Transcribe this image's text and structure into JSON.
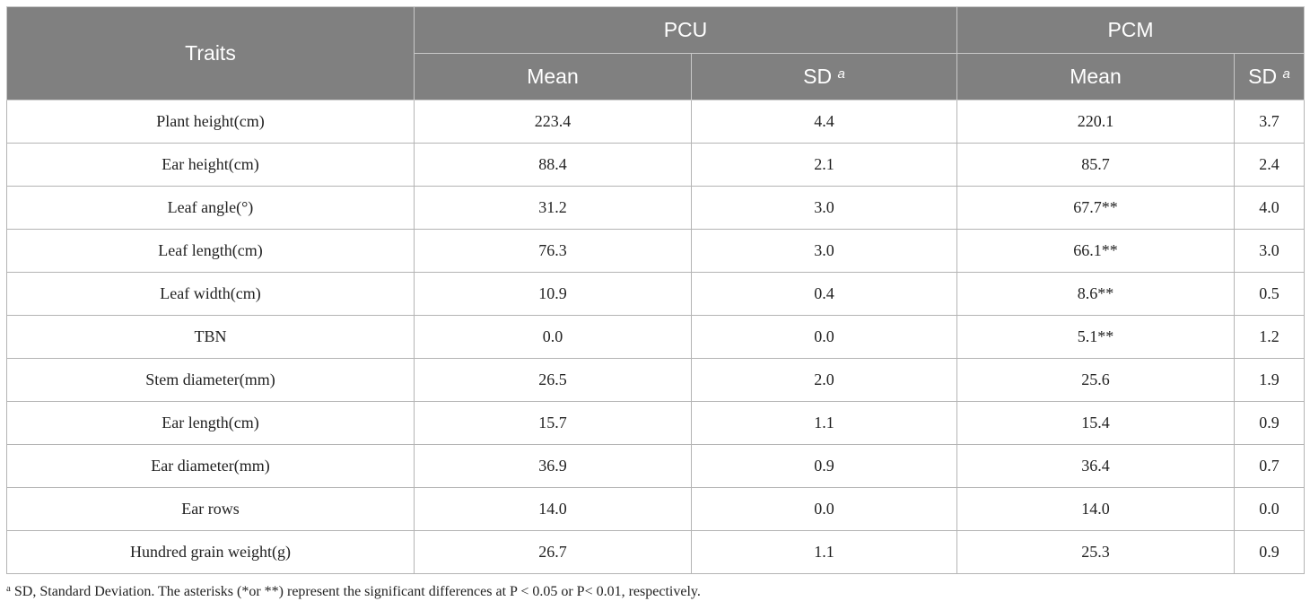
{
  "table": {
    "header": {
      "traits": "Traits",
      "groups": [
        "PCU",
        "PCM"
      ],
      "mean": "Mean",
      "sd": "SD",
      "sd_sup": "a"
    },
    "rows": [
      {
        "trait": "Plant height(cm)",
        "pcu_mean": "223.4",
        "pcu_sd": "4.4",
        "pcm_mean": "220.1",
        "pcm_sd": "3.7"
      },
      {
        "trait": "Ear height(cm)",
        "pcu_mean": "88.4",
        "pcu_sd": "2.1",
        "pcm_mean": "85.7",
        "pcm_sd": "2.4"
      },
      {
        "trait": "Leaf angle(°)",
        "pcu_mean": "31.2",
        "pcu_sd": "3.0",
        "pcm_mean": "67.7**",
        "pcm_sd": "4.0"
      },
      {
        "trait": "Leaf length(cm)",
        "pcu_mean": "76.3",
        "pcu_sd": "3.0",
        "pcm_mean": "66.1**",
        "pcm_sd": "3.0"
      },
      {
        "trait": "Leaf width(cm)",
        "pcu_mean": "10.9",
        "pcu_sd": "0.4",
        "pcm_mean": "8.6**",
        "pcm_sd": "0.5"
      },
      {
        "trait": "TBN",
        "pcu_mean": "0.0",
        "pcu_sd": "0.0",
        "pcm_mean": "5.1**",
        "pcm_sd": "1.2"
      },
      {
        "trait": "Stem diameter(mm)",
        "pcu_mean": "26.5",
        "pcu_sd": "2.0",
        "pcm_mean": "25.6",
        "pcm_sd": "1.9"
      },
      {
        "trait": "Ear length(cm)",
        "pcu_mean": "15.7",
        "pcu_sd": "1.1",
        "pcm_mean": "15.4",
        "pcm_sd": "0.9"
      },
      {
        "trait": "Ear diameter(mm)",
        "pcu_mean": "36.9",
        "pcu_sd": "0.9",
        "pcm_mean": "36.4",
        "pcm_sd": "0.7"
      },
      {
        "trait": "Ear rows",
        "pcu_mean": "14.0",
        "pcu_sd": "0.0",
        "pcm_mean": "14.0",
        "pcm_sd": "0.0"
      },
      {
        "trait": "Hundred grain weight(g)",
        "pcu_mean": "26.7",
        "pcu_sd": "1.1",
        "pcm_mean": "25.3",
        "pcm_sd": "0.9"
      }
    ]
  },
  "footnote": {
    "marker": "a",
    "text": "SD, Standard Deviation. The asterisks (*or **) represent the significant differences at P < 0.05 or P< 0.01, respectively."
  }
}
